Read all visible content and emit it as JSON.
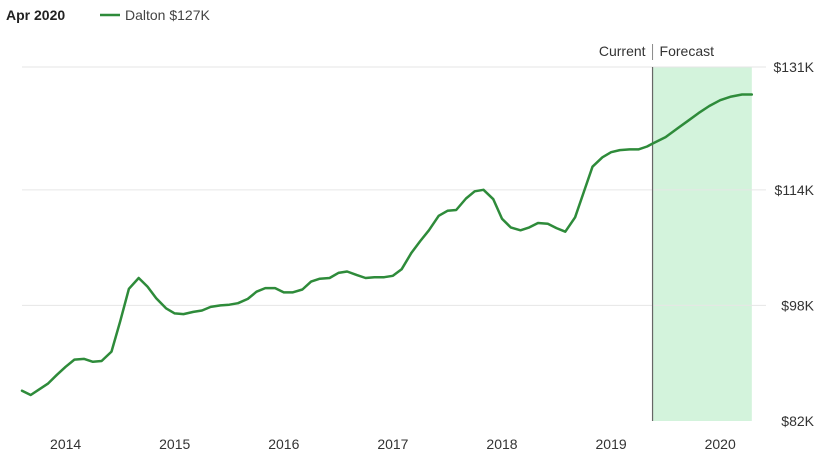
{
  "header": {
    "date": "Apr 2020",
    "legend_label": "Dalton $127K"
  },
  "markers": {
    "current": "Current",
    "forecast": "Forecast"
  },
  "colors": {
    "line": "#2e8b3a",
    "forecast_fill": "#d3f3dc",
    "gridline": "#e6e6e6",
    "divider": "#666666"
  },
  "chart_data": {
    "type": "line",
    "title": "",
    "xlabel": "",
    "ylabel": "",
    "x_ticks": [
      {
        "label": "2014",
        "x": 2014.0
      },
      {
        "label": "2015",
        "x": 2015.0
      },
      {
        "label": "2016",
        "x": 2016.0
      },
      {
        "label": "2017",
        "x": 2017.0
      },
      {
        "label": "2018",
        "x": 2018.0
      },
      {
        "label": "2019",
        "x": 2019.0
      },
      {
        "label": "2020",
        "x": 2020.0
      }
    ],
    "y_ticks": [
      {
        "label": "$131K",
        "y": 131
      },
      {
        "label": "$114K",
        "y": 114
      },
      {
        "label": "$98K",
        "y": 98
      },
      {
        "label": "$82K",
        "y": 82
      }
    ],
    "xlim": [
      2013.6,
      2020.42
    ],
    "ylim": [
      82,
      131
    ],
    "forecast_start": 2019.38,
    "forecast_end": 2020.29,
    "series": [
      {
        "name": "Dalton",
        "x": [
          2013.6,
          2013.68,
          2013.76,
          2013.84,
          2013.92,
          2014.0,
          2014.08,
          2014.17,
          2014.25,
          2014.33,
          2014.42,
          2014.5,
          2014.58,
          2014.67,
          2014.75,
          2014.83,
          2014.92,
          2015.0,
          2015.08,
          2015.17,
          2015.25,
          2015.33,
          2015.42,
          2015.5,
          2015.58,
          2015.67,
          2015.75,
          2015.83,
          2015.92,
          2016.0,
          2016.08,
          2016.17,
          2016.25,
          2016.33,
          2016.42,
          2016.5,
          2016.58,
          2016.67,
          2016.75,
          2016.83,
          2016.92,
          2017.0,
          2017.08,
          2017.17,
          2017.25,
          2017.33,
          2017.42,
          2017.5,
          2017.58,
          2017.67,
          2017.75,
          2017.83,
          2017.92,
          2018.0,
          2018.08,
          2018.17,
          2018.25,
          2018.33,
          2018.42,
          2018.5,
          2018.58,
          2018.67,
          2018.75,
          2018.83,
          2018.92,
          2019.0,
          2019.08,
          2019.17,
          2019.25,
          2019.33,
          2019.38,
          2019.5,
          2019.6,
          2019.7,
          2019.8,
          2019.9,
          2020.0,
          2020.1,
          2020.2,
          2020.29
        ],
        "values": [
          86.2,
          85.6,
          86.4,
          87.2,
          88.4,
          89.5,
          90.5,
          90.6,
          90.2,
          90.3,
          91.6,
          95.8,
          100.3,
          101.8,
          100.6,
          99.0,
          97.6,
          96.9,
          96.8,
          97.1,
          97.3,
          97.8,
          98.0,
          98.1,
          98.3,
          98.9,
          99.9,
          100.4,
          100.4,
          99.8,
          99.8,
          100.2,
          101.3,
          101.7,
          101.8,
          102.5,
          102.7,
          102.2,
          101.8,
          101.9,
          101.9,
          102.1,
          103.0,
          105.3,
          106.9,
          108.4,
          110.4,
          111.1,
          111.2,
          112.8,
          113.8,
          114.0,
          112.7,
          110.0,
          108.8,
          108.4,
          108.8,
          109.4,
          109.3,
          108.7,
          108.2,
          110.2,
          113.7,
          117.2,
          118.5,
          119.2,
          119.5,
          119.6,
          119.6,
          120.0,
          120.4,
          121.3,
          122.4,
          123.5,
          124.6,
          125.6,
          126.4,
          126.9,
          127.2,
          127.2
        ]
      }
    ],
    "grid": true,
    "legend_position": "top-left"
  }
}
